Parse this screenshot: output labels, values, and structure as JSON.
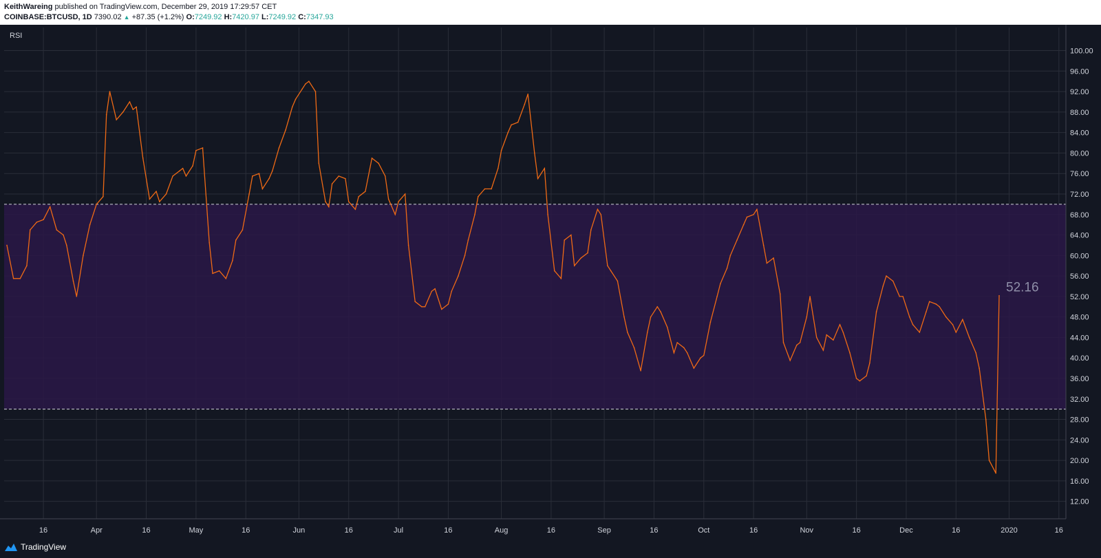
{
  "header": {
    "author": "KeithWareing",
    "published_text": " published on TradingView.com, December 29, 2019 17:29:57 CET",
    "symbol": "COINBASE:BTCUSD, 1D",
    "price": "7390.02",
    "change_arrow": "▲",
    "change": "+87.35 (+1.2%)",
    "open_label": "O:",
    "open": "7249.92",
    "high_label": "H:",
    "high": "7420.97",
    "low_label": "L:",
    "low": "7249.92",
    "close_label": "C:",
    "close": "7347.93"
  },
  "indicator": {
    "label": "RSI",
    "last_value": "52.16"
  },
  "footer": {
    "brand": "TradingView",
    "brand_icon": "tradingview-logo-icon"
  },
  "colors": {
    "background": "#131722",
    "grid": "#2a2e39",
    "rsi_line": "#f06a15",
    "band_fill": "#2a1847",
    "band_line": "#d1d4dc",
    "value_label": "#8f8fa8",
    "header_bg": "#ffffff",
    "teal": "#26a69a"
  },
  "chart_data": {
    "type": "line",
    "title": "RSI",
    "x_start": "2019-03-05",
    "x_end": "2019-12-29",
    "x_tick_labels": [
      "16",
      "Apr",
      "16",
      "May",
      "16",
      "Jun",
      "16",
      "Jul",
      "16",
      "Aug",
      "16",
      "Sep",
      "16",
      "Oct",
      "16",
      "Nov",
      "16",
      "Dec",
      "16",
      "2020",
      "16"
    ],
    "x_tick_dates": [
      "2019-03-16",
      "2019-04-01",
      "2019-04-16",
      "2019-05-01",
      "2019-05-16",
      "2019-06-01",
      "2019-06-16",
      "2019-07-01",
      "2019-07-16",
      "2019-08-01",
      "2019-08-16",
      "2019-09-01",
      "2019-09-16",
      "2019-10-01",
      "2019-10-16",
      "2019-11-01",
      "2019-11-16",
      "2019-12-01",
      "2019-12-16",
      "2020-01-01",
      "2020-01-16"
    ],
    "y_ticks": [
      "12.00",
      "16.00",
      "20.00",
      "24.00",
      "28.00",
      "32.00",
      "36.00",
      "40.00",
      "44.00",
      "48.00",
      "52.00",
      "56.00",
      "60.00",
      "64.00",
      "68.00",
      "72.00",
      "76.00",
      "80.00",
      "84.00",
      "88.00",
      "92.00",
      "96.00",
      "100.00"
    ],
    "ylim": [
      8.6,
      104.5
    ],
    "bands": {
      "upper": 70,
      "lower": 30
    },
    "grid": true,
    "series": [
      {
        "name": "RSI",
        "points": [
          [
            "2019-03-05",
            62
          ],
          [
            "2019-03-07",
            55.5
          ],
          [
            "2019-03-09",
            55.5
          ],
          [
            "2019-03-11",
            58
          ],
          [
            "2019-03-12",
            65
          ],
          [
            "2019-03-14",
            66.5
          ],
          [
            "2019-03-16",
            67
          ],
          [
            "2019-03-18",
            69.5
          ],
          [
            "2019-03-20",
            65
          ],
          [
            "2019-03-22",
            64
          ],
          [
            "2019-03-23",
            62
          ],
          [
            "2019-03-25",
            55
          ],
          [
            "2019-03-26",
            52
          ],
          [
            "2019-03-28",
            60
          ],
          [
            "2019-03-30",
            66
          ],
          [
            "2019-04-01",
            70
          ],
          [
            "2019-04-03",
            71.5
          ],
          [
            "2019-04-04",
            87.5
          ],
          [
            "2019-04-05",
            92
          ],
          [
            "2019-04-07",
            86.5
          ],
          [
            "2019-04-09",
            88
          ],
          [
            "2019-04-11",
            90
          ],
          [
            "2019-04-12",
            88.5
          ],
          [
            "2019-04-13",
            89
          ],
          [
            "2019-04-15",
            79
          ],
          [
            "2019-04-17",
            71
          ],
          [
            "2019-04-19",
            72.5
          ],
          [
            "2019-04-20",
            70.5
          ],
          [
            "2019-04-22",
            72
          ],
          [
            "2019-04-24",
            75.5
          ],
          [
            "2019-04-26",
            76.5
          ],
          [
            "2019-04-27",
            77
          ],
          [
            "2019-04-28",
            75.5
          ],
          [
            "2019-04-30",
            77.5
          ],
          [
            "2019-05-01",
            80.5
          ],
          [
            "2019-05-03",
            81
          ],
          [
            "2019-05-05",
            62.5
          ],
          [
            "2019-05-06",
            56.5
          ],
          [
            "2019-05-08",
            57
          ],
          [
            "2019-05-10",
            55.5
          ],
          [
            "2019-05-12",
            59
          ],
          [
            "2019-05-13",
            63
          ],
          [
            "2019-05-15",
            65
          ],
          [
            "2019-05-17",
            72
          ],
          [
            "2019-05-18",
            75.5
          ],
          [
            "2019-05-20",
            76
          ],
          [
            "2019-05-21",
            73
          ],
          [
            "2019-05-23",
            75
          ],
          [
            "2019-05-24",
            76.5
          ],
          [
            "2019-05-26",
            81
          ],
          [
            "2019-05-28",
            84.5
          ],
          [
            "2019-05-30",
            89
          ],
          [
            "2019-05-31",
            90.5
          ],
          [
            "2019-06-02",
            92.5
          ],
          [
            "2019-06-03",
            93.5
          ],
          [
            "2019-06-04",
            94
          ],
          [
            "2019-06-06",
            92
          ],
          [
            "2019-06-07",
            78
          ],
          [
            "2019-06-09",
            70.5
          ],
          [
            "2019-06-10",
            69.5
          ],
          [
            "2019-06-11",
            74
          ],
          [
            "2019-06-13",
            75.5
          ],
          [
            "2019-06-15",
            75
          ],
          [
            "2019-06-16",
            70.5
          ],
          [
            "2019-06-18",
            69
          ],
          [
            "2019-06-19",
            71.5
          ],
          [
            "2019-06-21",
            72.5
          ],
          [
            "2019-06-23",
            79
          ],
          [
            "2019-06-25",
            78
          ],
          [
            "2019-06-27",
            75.5
          ],
          [
            "2019-06-28",
            71
          ],
          [
            "2019-06-30",
            68
          ],
          [
            "2019-07-01",
            70.5
          ],
          [
            "2019-07-03",
            72
          ],
          [
            "2019-07-04",
            62
          ],
          [
            "2019-07-06",
            51
          ],
          [
            "2019-07-08",
            50
          ],
          [
            "2019-07-09",
            50
          ],
          [
            "2019-07-11",
            53
          ],
          [
            "2019-07-12",
            53.5
          ],
          [
            "2019-07-14",
            49.5
          ],
          [
            "2019-07-16",
            50.5
          ],
          [
            "2019-07-17",
            53
          ],
          [
            "2019-07-19",
            56
          ],
          [
            "2019-07-21",
            60
          ],
          [
            "2019-07-22",
            63
          ],
          [
            "2019-07-24",
            68
          ],
          [
            "2019-07-25",
            71.5
          ],
          [
            "2019-07-27",
            73
          ],
          [
            "2019-07-29",
            73
          ],
          [
            "2019-07-31",
            77
          ],
          [
            "2019-08-01",
            80.5
          ],
          [
            "2019-08-03",
            84
          ],
          [
            "2019-08-04",
            85.5
          ],
          [
            "2019-08-06",
            86
          ],
          [
            "2019-08-08",
            89.5
          ],
          [
            "2019-08-09",
            91.5
          ],
          [
            "2019-08-11",
            80
          ],
          [
            "2019-08-12",
            75
          ],
          [
            "2019-08-14",
            77
          ],
          [
            "2019-08-15",
            68
          ],
          [
            "2019-08-17",
            57
          ],
          [
            "2019-08-19",
            55.5
          ],
          [
            "2019-08-20",
            63
          ],
          [
            "2019-08-22",
            64
          ],
          [
            "2019-08-23",
            58
          ],
          [
            "2019-08-25",
            59.5
          ],
          [
            "2019-08-27",
            60.5
          ],
          [
            "2019-08-28",
            65
          ],
          [
            "2019-08-30",
            69
          ],
          [
            "2019-08-31",
            68
          ],
          [
            "2019-09-02",
            58
          ],
          [
            "2019-09-03",
            57
          ],
          [
            "2019-09-05",
            55
          ],
          [
            "2019-09-07",
            48
          ],
          [
            "2019-09-08",
            45
          ],
          [
            "2019-09-10",
            42
          ],
          [
            "2019-09-12",
            37.5
          ],
          [
            "2019-09-14",
            45
          ],
          [
            "2019-09-15",
            48
          ],
          [
            "2019-09-17",
            50
          ],
          [
            "2019-09-18",
            49
          ],
          [
            "2019-09-20",
            46
          ],
          [
            "2019-09-22",
            41
          ],
          [
            "2019-09-23",
            43
          ],
          [
            "2019-09-25",
            42
          ],
          [
            "2019-09-26",
            41
          ],
          [
            "2019-09-28",
            38
          ],
          [
            "2019-09-30",
            40
          ],
          [
            "2019-10-01",
            40.5
          ],
          [
            "2019-10-03",
            47
          ],
          [
            "2019-10-05",
            52
          ],
          [
            "2019-10-06",
            54.5
          ],
          [
            "2019-10-08",
            57.5
          ],
          [
            "2019-10-09",
            60
          ],
          [
            "2019-10-11",
            63
          ],
          [
            "2019-10-13",
            66
          ],
          [
            "2019-10-14",
            67.5
          ],
          [
            "2019-10-16",
            68
          ],
          [
            "2019-10-17",
            69
          ],
          [
            "2019-10-19",
            62
          ],
          [
            "2019-10-20",
            58.5
          ],
          [
            "2019-10-22",
            59.5
          ],
          [
            "2019-10-24",
            52.5
          ],
          [
            "2019-10-25",
            43
          ],
          [
            "2019-10-27",
            39.5
          ],
          [
            "2019-10-29",
            42.5
          ],
          [
            "2019-10-30",
            43
          ],
          [
            "2019-11-01",
            48
          ],
          [
            "2019-11-02",
            52
          ],
          [
            "2019-11-04",
            44
          ],
          [
            "2019-11-06",
            41.5
          ],
          [
            "2019-11-07",
            44.5
          ],
          [
            "2019-11-09",
            43.5
          ],
          [
            "2019-11-11",
            46.5
          ],
          [
            "2019-11-12",
            45
          ],
          [
            "2019-11-14",
            41
          ],
          [
            "2019-11-16",
            36
          ],
          [
            "2019-11-17",
            35.5
          ],
          [
            "2019-11-19",
            36.5
          ],
          [
            "2019-11-20",
            39
          ],
          [
            "2019-11-22",
            49
          ],
          [
            "2019-11-24",
            54
          ],
          [
            "2019-11-25",
            56
          ],
          [
            "2019-11-27",
            55
          ],
          [
            "2019-11-29",
            52
          ],
          [
            "2019-11-30",
            52
          ],
          [
            "2019-12-02",
            48
          ],
          [
            "2019-12-03",
            46.5
          ],
          [
            "2019-12-05",
            45
          ],
          [
            "2019-12-07",
            49
          ],
          [
            "2019-12-08",
            51
          ],
          [
            "2019-12-10",
            50.5
          ],
          [
            "2019-12-11",
            50
          ],
          [
            "2019-12-13",
            48
          ],
          [
            "2019-12-15",
            46.5
          ],
          [
            "2019-12-16",
            45
          ],
          [
            "2019-12-18",
            47.5
          ],
          [
            "2019-12-20",
            44
          ],
          [
            "2019-12-22",
            41
          ],
          [
            "2019-12-23",
            38
          ],
          [
            "2019-12-25",
            28
          ],
          [
            "2019-12-26",
            20
          ],
          [
            "2019-12-28",
            17.5
          ],
          [
            "2019-12-29",
            52.16
          ]
        ]
      }
    ]
  }
}
